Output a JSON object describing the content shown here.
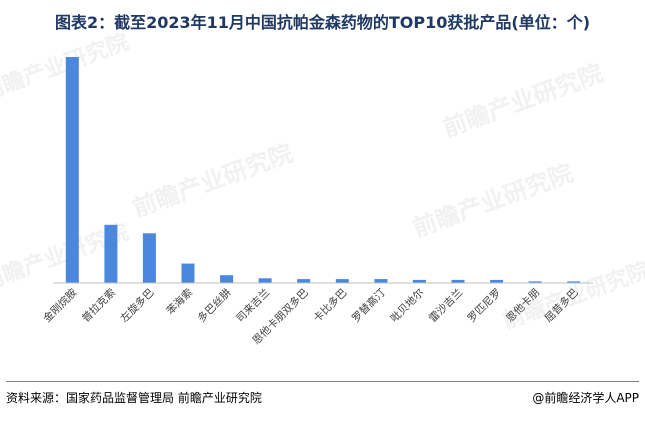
{
  "title": "图表2：截至2023年11月中国抗帕金森药物的TOP10获批产品(单位：个)",
  "watermark": "前瞻产业研究院",
  "footer": {
    "source": "资料来源：国家药品监督管理局 前瞻产业研究院",
    "brand": "@前瞻经济学人APP"
  },
  "colors": {
    "bar": "#4a87dd",
    "title": "#1f3864"
  },
  "chart_data": {
    "type": "bar",
    "title": "图表2：截至2023年11月中国抗帕金森药物的TOP10获批产品(单位：个)",
    "categories": [
      "金刚烷胺",
      "普拉克索",
      "左旋多巴",
      "苯海索",
      "多巴丝肼",
      "司来吉兰",
      "恩他卡朋双多巴",
      "卡比多巴",
      "罗替高汀",
      "吡贝地尔",
      "雷沙吉兰",
      "罗匹尼罗",
      "恩他卡朋",
      "屈昔多巴"
    ],
    "values": [
      291,
      75,
      64,
      25,
      10,
      6,
      5,
      5,
      5,
      4,
      4,
      4,
      2,
      2
    ],
    "ylim": [
      0,
      291
    ],
    "grid": false,
    "legend": "none",
    "xlabel": "",
    "ylabel": ""
  }
}
